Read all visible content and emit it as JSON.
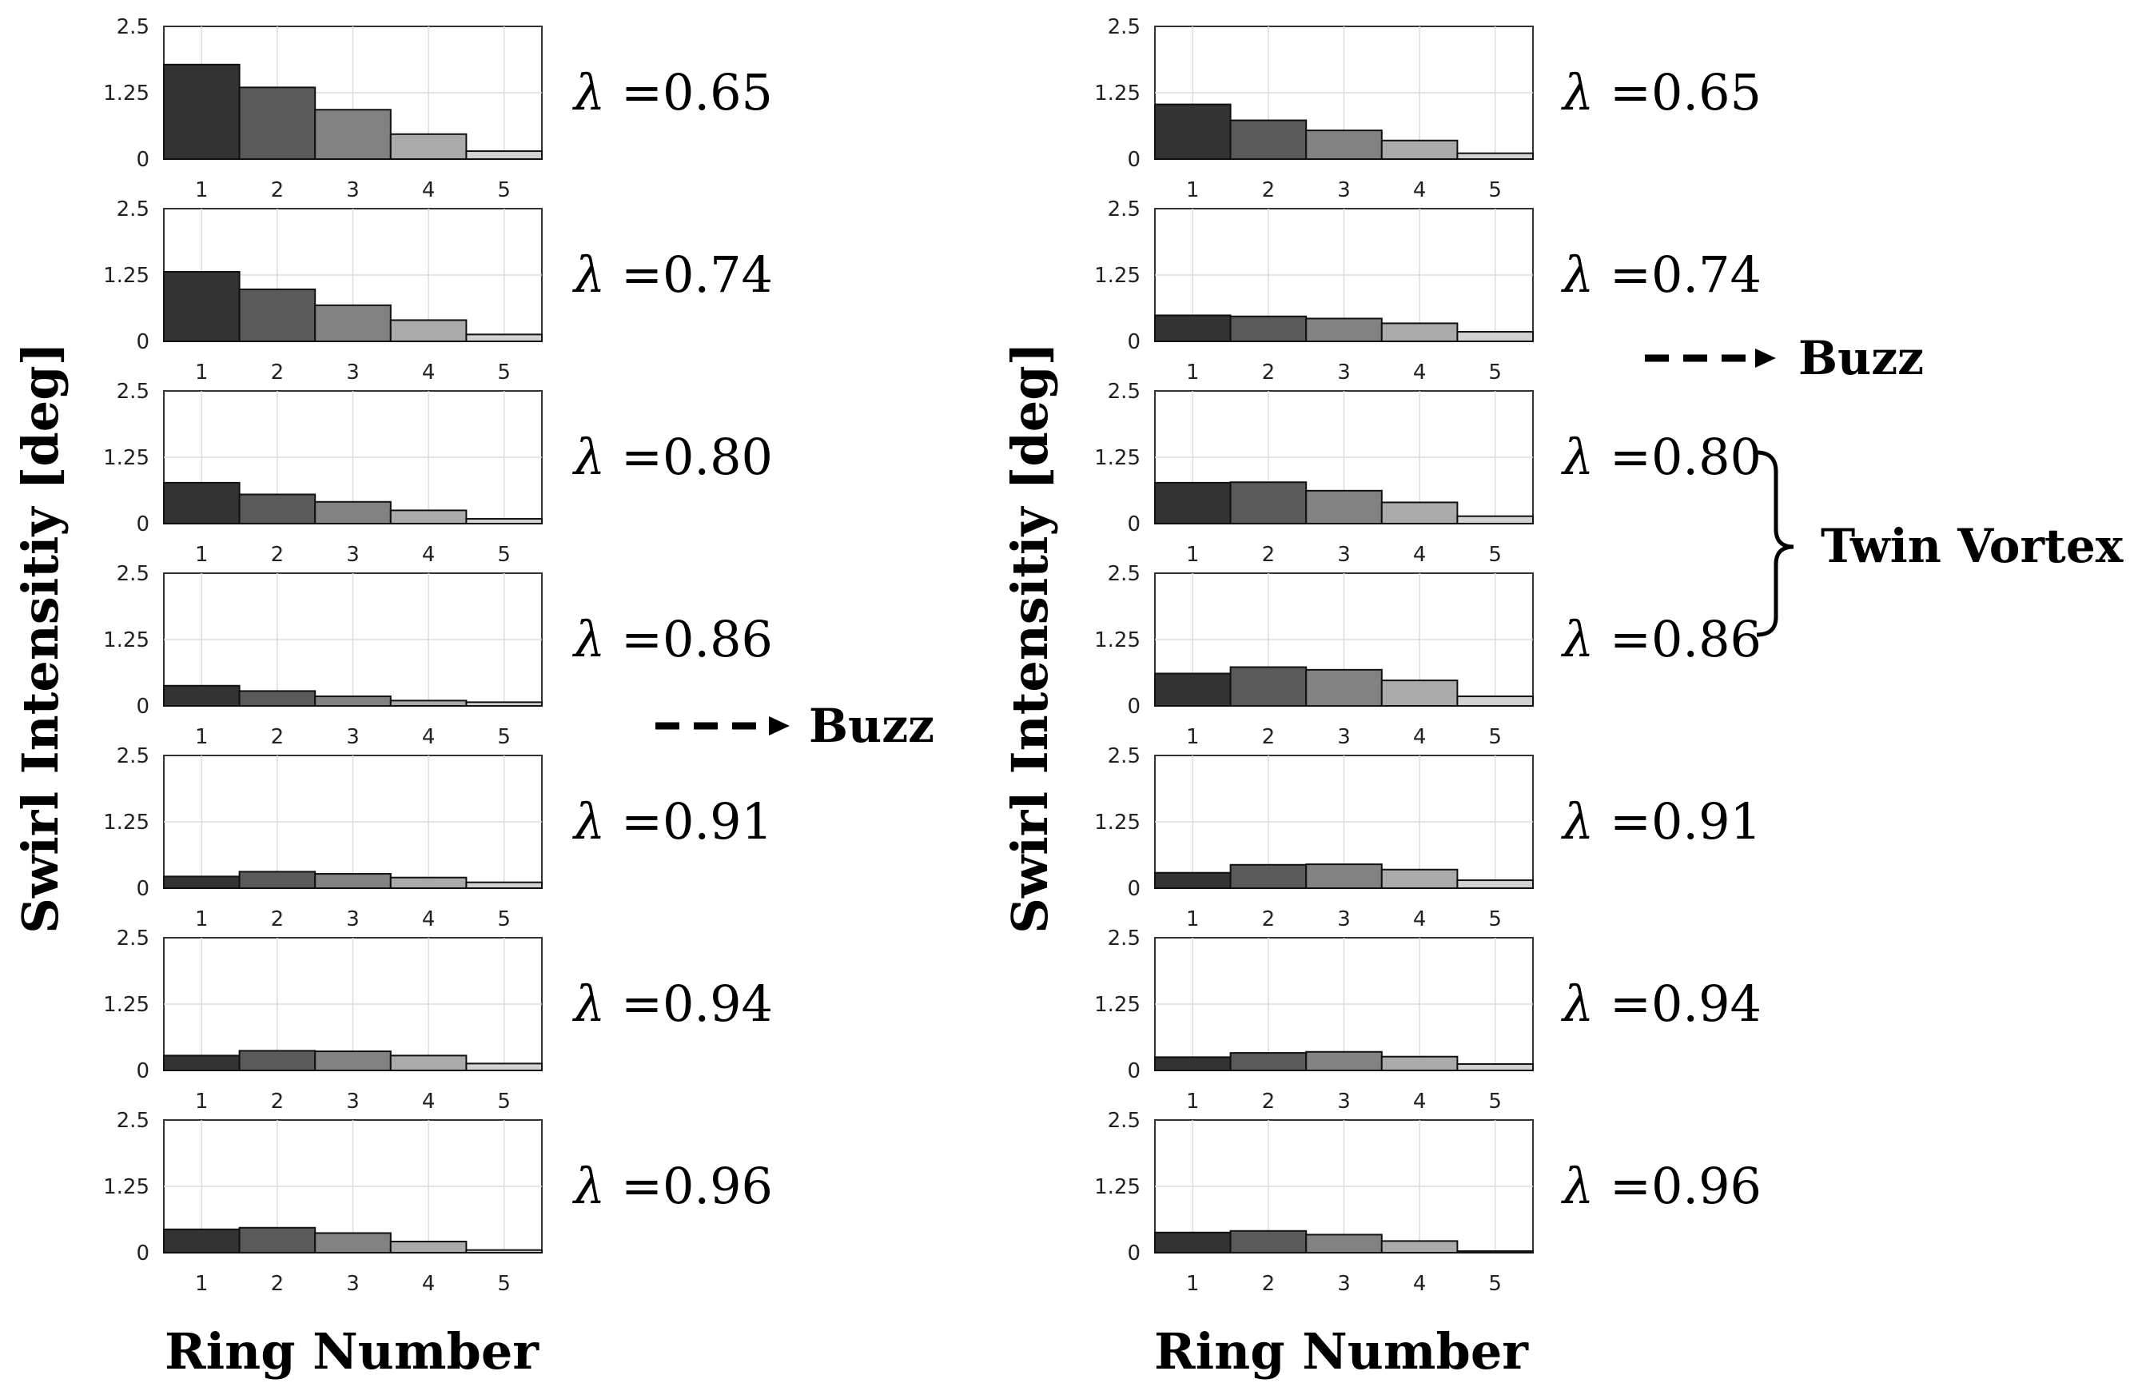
{
  "chart_data": [
    {
      "type": "bar",
      "ylabel": "Swirl Intensitiy [deg]",
      "xlabel": "Ring Number",
      "ylim": [
        0,
        2.5
      ],
      "yticks": [
        "0",
        "1.25",
        "2.5"
      ],
      "categories": [
        "1",
        "2",
        "3",
        "4",
        "5"
      ],
      "grid": true,
      "bar_colors": [
        "#333333",
        "#5a5a5a",
        "#828282",
        "#aaaaaa",
        "#d2d2d2"
      ],
      "panels": [
        {
          "label": "λ =0.65",
          "lambda": "λ",
          "value_text": "=0.65",
          "values": [
            1.78,
            1.35,
            0.93,
            0.47,
            0.15
          ]
        },
        {
          "label": "λ =0.74",
          "lambda": "λ",
          "value_text": "=0.74",
          "values": [
            1.31,
            0.98,
            0.68,
            0.4,
            0.13
          ]
        },
        {
          "label": "λ =0.80",
          "lambda": "λ",
          "value_text": "=0.80",
          "values": [
            0.77,
            0.55,
            0.41,
            0.25,
            0.09
          ]
        },
        {
          "label": "λ =0.86",
          "lambda": "λ",
          "value_text": "=0.86",
          "values": [
            0.38,
            0.28,
            0.18,
            0.1,
            0.07
          ]
        },
        {
          "label": "λ =0.91",
          "lambda": "λ",
          "value_text": "=0.91",
          "values": [
            0.22,
            0.31,
            0.27,
            0.2,
            0.11
          ]
        },
        {
          "label": "λ =0.94",
          "lambda": "λ",
          "value_text": "=0.94",
          "values": [
            0.28,
            0.37,
            0.36,
            0.28,
            0.13
          ]
        },
        {
          "label": "λ =0.96",
          "lambda": "λ",
          "value_text": "=0.96",
          "values": [
            0.44,
            0.47,
            0.37,
            0.21,
            0.05
          ]
        }
      ]
    },
    {
      "type": "bar",
      "ylabel": "Swirl Intensitiy [deg]",
      "xlabel": "Ring Number",
      "ylim": [
        0,
        2.5
      ],
      "yticks": [
        "0",
        "1.25",
        "2.5"
      ],
      "categories": [
        "1",
        "2",
        "3",
        "4",
        "5"
      ],
      "grid": true,
      "bar_colors": [
        "#333333",
        "#5a5a5a",
        "#828282",
        "#aaaaaa",
        "#d2d2d2"
      ],
      "panels": [
        {
          "label": "λ =0.65",
          "lambda": "λ",
          "value_text": "=0.65",
          "values": [
            1.03,
            0.73,
            0.54,
            0.35,
            0.11
          ]
        },
        {
          "label": "λ =0.74",
          "lambda": "λ",
          "value_text": "=0.74",
          "values": [
            0.49,
            0.47,
            0.43,
            0.34,
            0.18
          ]
        },
        {
          "label": "λ =0.80",
          "lambda": "λ",
          "value_text": "=0.80",
          "values": [
            0.77,
            0.78,
            0.62,
            0.4,
            0.14
          ]
        },
        {
          "label": "λ =0.86",
          "lambda": "λ",
          "value_text": "=0.86",
          "values": [
            0.61,
            0.73,
            0.68,
            0.48,
            0.18
          ]
        },
        {
          "label": "λ =0.91",
          "lambda": "λ",
          "value_text": "=0.91",
          "values": [
            0.29,
            0.44,
            0.45,
            0.35,
            0.15
          ]
        },
        {
          "label": "λ =0.94",
          "lambda": "λ",
          "value_text": "=0.94",
          "values": [
            0.25,
            0.33,
            0.35,
            0.26,
            0.12
          ]
        },
        {
          "label": "λ =0.96",
          "lambda": "λ",
          "value_text": "=0.96",
          "values": [
            0.38,
            0.41,
            0.34,
            0.22,
            0.03
          ]
        }
      ]
    }
  ],
  "annotations": {
    "buzz_left": "Buzz",
    "buzz_right": "Buzz",
    "twin_vortex": "Twin Vortex"
  }
}
